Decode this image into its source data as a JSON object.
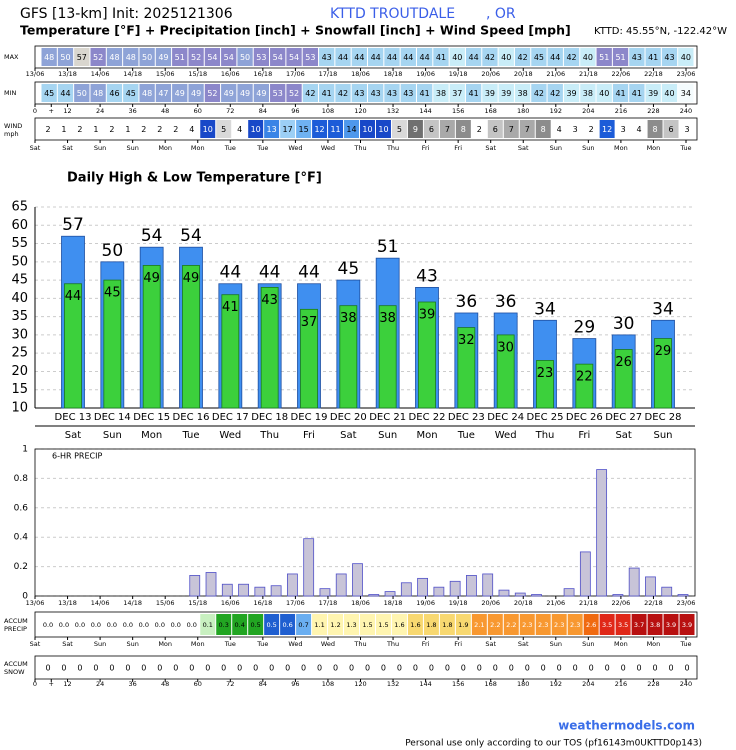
{
  "header": {
    "title": "GFS [13-km] Init: 2025121306",
    "station": "KTTD TROUTDALE",
    "state": ", OR",
    "subtitle": "Temperature [°F] + Precipitation [inch] + Snowfall [inch] + Wind Speed [mph]",
    "location": "KTTD: 45.55°N, -122.42°W"
  },
  "footer": {
    "site": "weathermodels.com",
    "notice": "Personal use only according to our TOS (pf16143m0UKTTD0p143)"
  },
  "time_axis": {
    "xlim": [
      0,
      240
    ],
    "date_ticks": [
      {
        "value": 0,
        "label": "13/06"
      },
      {
        "value": 12,
        "label": "13/18"
      },
      {
        "value": 24,
        "label": "14/06"
      },
      {
        "value": 36,
        "label": "14/18"
      },
      {
        "value": 48,
        "label": "15/06"
      },
      {
        "value": 60,
        "label": "15/18"
      },
      {
        "value": 72,
        "label": "16/06"
      },
      {
        "value": 84,
        "label": "16/18"
      },
      {
        "value": 96,
        "label": "17/06"
      },
      {
        "value": 108,
        "label": "17/18"
      },
      {
        "value": 120,
        "label": "18/06"
      },
      {
        "value": 132,
        "label": "18/18"
      },
      {
        "value": 144,
        "label": "19/06"
      },
      {
        "value": 156,
        "label": "19/18"
      },
      {
        "value": 168,
        "label": "20/06"
      },
      {
        "value": 180,
        "label": "20/18"
      },
      {
        "value": 192,
        "label": "21/06"
      },
      {
        "value": 204,
        "label": "21/18"
      },
      {
        "value": 216,
        "label": "22/06"
      },
      {
        "value": 228,
        "label": "22/18"
      },
      {
        "value": 240,
        "label": "23/06"
      }
    ],
    "hour_ticks": [
      0,
      {
        "value": 6,
        "label": "+"
      },
      12,
      24,
      36,
      48,
      60,
      72,
      84,
      96,
      108,
      120,
      132,
      144,
      156,
      168,
      180,
      192,
      204,
      216,
      228,
      240
    ],
    "day_ticks": [
      {
        "value": 0,
        "label": "Sat"
      },
      {
        "value": 12,
        "label": "Sat"
      },
      {
        "value": 24,
        "label": "Sun"
      },
      {
        "value": 36,
        "label": "Sun"
      },
      {
        "value": 48,
        "label": "Mon"
      },
      {
        "value": 60,
        "label": "Mon"
      },
      {
        "value": 72,
        "label": "Tue"
      },
      {
        "value": 84,
        "label": "Tue"
      },
      {
        "value": 96,
        "label": "Wed"
      },
      {
        "value": 108,
        "label": "Wed"
      },
      {
        "value": 120,
        "label": "Thu"
      },
      {
        "value": 132,
        "label": "Thu"
      },
      {
        "value": 144,
        "label": "Fri"
      },
      {
        "value": 156,
        "label": "Fri"
      },
      {
        "value": 168,
        "label": "Sat"
      },
      {
        "value": 180,
        "label": "Sat"
      },
      {
        "value": 192,
        "label": "Sun"
      },
      {
        "value": 204,
        "label": "Sun"
      },
      {
        "value": 216,
        "label": "Mon"
      },
      {
        "value": 228,
        "label": "Mon"
      },
      {
        "value": 240,
        "label": "Tue"
      }
    ]
  },
  "chart_data": [
    {
      "type": "strip",
      "label": [
        "MAX"
      ],
      "values": [
        48,
        50,
        57,
        52,
        48,
        48,
        50,
        49,
        51,
        52,
        54,
        54,
        50,
        53,
        54,
        54,
        53,
        43,
        44,
        44,
        44,
        44,
        44,
        44,
        41,
        40,
        44,
        42,
        40,
        42,
        45,
        44,
        42,
        40,
        51,
        51,
        43,
        41,
        43,
        40
      ],
      "color_scale": [
        {
          "min": 0,
          "color": "#f4fbfd"
        },
        {
          "min": 35,
          "color": "#c9edf8"
        },
        {
          "min": 41,
          "color": "#a6d5f1"
        },
        {
          "min": 47,
          "color": "#8ea3d7",
          "text": "#ffffff"
        },
        {
          "min": 51,
          "color": "#8c87ca",
          "text": "#ffffff"
        },
        {
          "min": 55,
          "color": "#d9d6cf"
        }
      ]
    },
    {
      "type": "strip",
      "label": [
        "MIN"
      ],
      "values": [
        45,
        44,
        50,
        48,
        46,
        45,
        48,
        47,
        49,
        49,
        52,
        49,
        49,
        49,
        53,
        52,
        42,
        41,
        42,
        43,
        43,
        43,
        43,
        41,
        38,
        37,
        41,
        39,
        39,
        38,
        42,
        42,
        39,
        38,
        40,
        41,
        41,
        39,
        40,
        34
      ],
      "color_scale": [
        {
          "min": 0,
          "color": "#f4fbfd"
        },
        {
          "min": 35,
          "color": "#c9edf8"
        },
        {
          "min": 41,
          "color": "#a6d5f1"
        },
        {
          "min": 47,
          "color": "#8ea3d7",
          "text": "#ffffff"
        },
        {
          "min": 51,
          "color": "#8c87ca",
          "text": "#ffffff"
        },
        {
          "min": 55,
          "color": "#d9d6cf"
        }
      ]
    },
    {
      "type": "strip",
      "label": [
        "WIND",
        "mph"
      ],
      "values": [
        2,
        1,
        2,
        1,
        2,
        1,
        2,
        2,
        2,
        4,
        10,
        5,
        4,
        10,
        13,
        17,
        15,
        12,
        11,
        14,
        10,
        10,
        5,
        9,
        6,
        7,
        8,
        2,
        6,
        7,
        7,
        8,
        4,
        3,
        2,
        12,
        3,
        4,
        8,
        6,
        3
      ],
      "color_scale": [
        {
          "min": 0,
          "color": "#ffffff"
        },
        {
          "min": 5,
          "color": "#d9d9d9"
        },
        {
          "min": 6,
          "color": "#c4c4c4"
        },
        {
          "min": 7,
          "color": "#a9a9a9"
        },
        {
          "min": 8,
          "color": "#8c8c8c",
          "text": "#ffffff"
        },
        {
          "min": 9,
          "color": "#707070",
          "text": "#ffffff"
        },
        {
          "min": 10,
          "color": "#1848c8",
          "text": "#ffffff"
        },
        {
          "min": 11,
          "color": "#1c5cd8",
          "text": "#ffffff"
        },
        {
          "min": 13,
          "color": "#3a84e6",
          "text": "#ffffff"
        },
        {
          "min": 14,
          "color": "#4f98ec"
        },
        {
          "min": 15,
          "color": "#6fb2f2"
        },
        {
          "min": 17,
          "color": "#9ccff5"
        }
      ]
    },
    {
      "type": "bar",
      "title": "Daily High & Low Temperature [°F]",
      "categories": [
        "DEC 13",
        "DEC 14",
        "DEC 15",
        "DEC 16",
        "DEC 17",
        "DEC 18",
        "DEC 19",
        "DEC 20",
        "DEC 21",
        "DEC 22",
        "DEC 23",
        "DEC 24",
        "DEC 25",
        "DEC 26",
        "DEC 27",
        "DEC 28"
      ],
      "weekdays": [
        "Sat",
        "Sun",
        "Mon",
        "Tue",
        "Wed",
        "Thu",
        "Fri",
        "Sat",
        "Sun",
        "Mon",
        "Tue",
        "Wed",
        "Thu",
        "Fri",
        "Sat",
        "Sun"
      ],
      "series": [
        {
          "color": "#3f8ff0",
          "values": [
            57,
            50,
            54,
            54,
            44,
            44,
            44,
            45,
            51,
            43,
            36,
            36,
            34,
            29,
            30,
            34
          ]
        },
        {
          "color": "#3cd03c",
          "values": [
            44,
            45,
            49,
            49,
            41,
            43,
            37,
            38,
            38,
            39,
            32,
            30,
            23,
            22,
            26,
            29
          ]
        }
      ],
      "ylim": [
        10,
        65
      ],
      "yticks": [
        10,
        15,
        20,
        25,
        30,
        35,
        40,
        45,
        50,
        55,
        60,
        65
      ],
      "grid": true
    },
    {
      "type": "bar",
      "title": "6-HR PRECIP",
      "color": "#c8c4d8",
      "edge": "#5050c8",
      "x": [
        0,
        6,
        12,
        18,
        24,
        30,
        36,
        42,
        48,
        54,
        60,
        66,
        72,
        78,
        84,
        90,
        96,
        102,
        108,
        114,
        120,
        126,
        132,
        138,
        144,
        150,
        156,
        162,
        168,
        174,
        180,
        186,
        192,
        198,
        204,
        210,
        216,
        222,
        228,
        234,
        240
      ],
      "values": [
        0,
        0,
        0,
        0,
        0,
        0,
        0,
        0,
        0,
        0,
        0.14,
        0.16,
        0.08,
        0.08,
        0.06,
        0.07,
        0.15,
        0.39,
        0.05,
        0.15,
        0.22,
        0.01,
        0.03,
        0.09,
        0.12,
        0.06,
        0.1,
        0.14,
        0.15,
        0.04,
        0.02,
        0.01,
        0,
        0.05,
        0.3,
        0.86,
        0.01,
        0.19,
        0.13,
        0.06,
        0.01
      ],
      "ylim": [
        0,
        1
      ],
      "yticks": [
        0,
        0.2,
        0.4,
        0.6,
        0.8,
        1
      ],
      "grid": true
    },
    {
      "type": "strip",
      "label": [
        "ACCUM",
        "PRECIP"
      ],
      "values": [
        0,
        0,
        0,
        0,
        0,
        0,
        0,
        0,
        0,
        0,
        0.14,
        0.3,
        0.38,
        0.46,
        0.52,
        0.59,
        0.74,
        1.13,
        1.18,
        1.33,
        1.52,
        1.54,
        1.56,
        1.64,
        1.76,
        1.82,
        1.92,
        2.06,
        2.2,
        2.24,
        2.26,
        2.28,
        2.29,
        2.34,
        2.64,
        3.5,
        3.51,
        3.7,
        3.83,
        3.89,
        3.9
      ],
      "value_labels": [
        "0.0",
        "0.0",
        "0.0",
        "0.0",
        "0.0",
        "0.0",
        "0.0",
        "0.0",
        "0.0",
        "0.0",
        "0.1",
        "0.3",
        "0.4",
        "0.5",
        "0.5",
        "0.6",
        "0.7",
        "1.1",
        "1.2",
        "1.3",
        "1.5",
        "1.5",
        "1.6",
        "1.6",
        "1.8",
        "1.8",
        "1.9",
        "2.1",
        "2.2",
        "2.2",
        "2.3",
        "2.3",
        "2.3",
        "2.3",
        "2.6",
        "3.5",
        "3.5",
        "3.7",
        "3.8",
        "3.9",
        "3.9"
      ],
      "color_scale": [
        {
          "min": 0,
          "color": "#ffffff"
        },
        {
          "min": 0.05,
          "color": "#c8f0c0"
        },
        {
          "min": 0.25,
          "color": "#22a522"
        },
        {
          "min": 0.5,
          "color": "#1f5fd0",
          "text": "#ffffff"
        },
        {
          "min": 0.7,
          "color": "#6aaef0"
        },
        {
          "min": 1,
          "color": "#fff5b0"
        },
        {
          "min": 1.6,
          "color": "#f8d870"
        },
        {
          "min": 2,
          "color": "#f89830",
          "text": "#ffffff"
        },
        {
          "min": 2.5,
          "color": "#f06a10",
          "text": "#ffffff"
        },
        {
          "min": 3,
          "color": "#e02818",
          "text": "#ffffff"
        },
        {
          "min": 3.6,
          "color": "#b81010",
          "text": "#ffffff"
        }
      ]
    },
    {
      "type": "strip",
      "label": [
        "ACCUM",
        "SNOW"
      ],
      "values": [
        0,
        0,
        0,
        0,
        0,
        0,
        0,
        0,
        0,
        0,
        0,
        0,
        0,
        0,
        0,
        0,
        0,
        0,
        0,
        0,
        0,
        0,
        0,
        0,
        0,
        0,
        0,
        0,
        0,
        0,
        0,
        0,
        0,
        0,
        0,
        0,
        0,
        0,
        0,
        0,
        0
      ],
      "color_scale": [
        {
          "min": 0,
          "color": "#ffffff"
        }
      ]
    }
  ]
}
